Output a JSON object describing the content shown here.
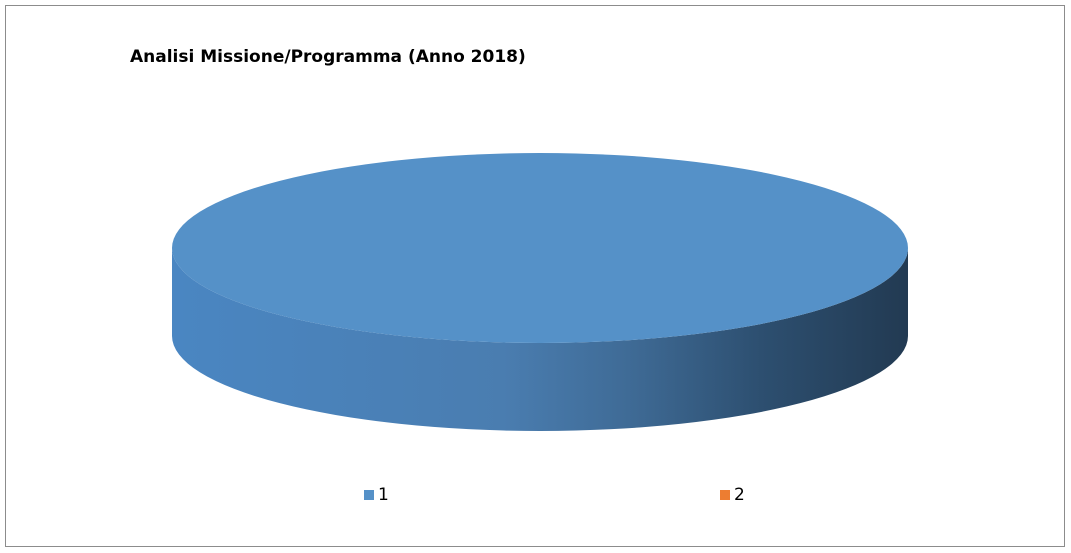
{
  "chart_data": {
    "type": "pie",
    "title": "Analisi Missione/Programma (Anno 2018)",
    "style": "3d",
    "categories": [
      "1",
      "2"
    ],
    "values": [
      100,
      0
    ],
    "colors": [
      "#5591c8",
      "#ed7d31"
    ],
    "legend_position": "bottom"
  }
}
